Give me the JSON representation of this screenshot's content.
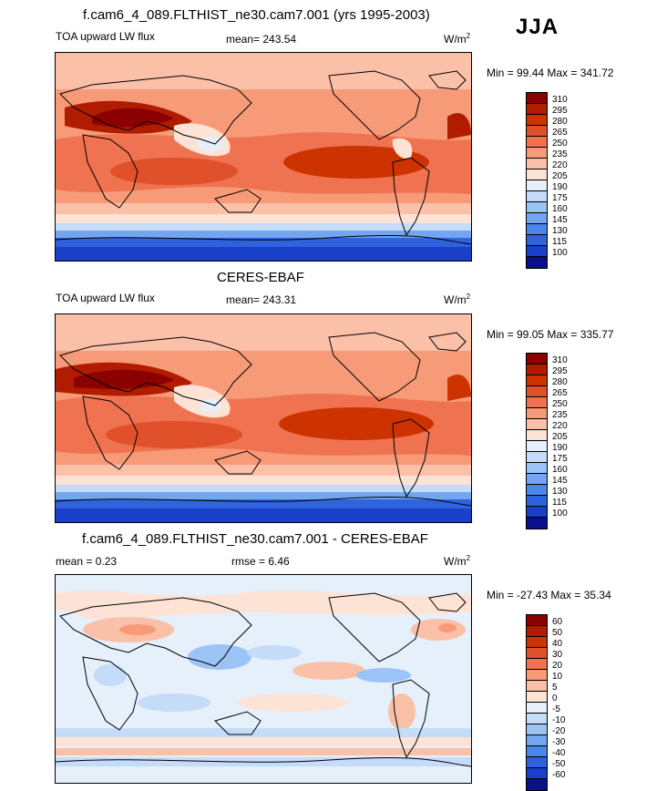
{
  "season": "JJA",
  "panels": [
    {
      "title": "f.cam6_4_089.FLTHIST_ne30.cam7.001 (yrs 1995-2003)",
      "left_label": "TOA upward LW flux",
      "center_label": "mean= 243.54",
      "units": "W/m",
      "units_sup": "2",
      "minmax": "Min =  99.44 Max = 341.72",
      "levels": [
        "310",
        "295",
        "280",
        "265",
        "250",
        "235",
        "220",
        "205",
        "190",
        "175",
        "160",
        "145",
        "130",
        "115",
        "100"
      ],
      "colors": [
        "#8b0000",
        "#b01c00",
        "#cc3300",
        "#e0502a",
        "#ef7350",
        "#f79a78",
        "#fbc0a8",
        "#fde3d6",
        "#e6f0fb",
        "#c4dcf8",
        "#9cc3f5",
        "#74a6f0",
        "#4c86ea",
        "#2f62dd",
        "#1a3fc8",
        "#08108a"
      ]
    },
    {
      "title": "CERES-EBAF",
      "left_label": "TOA upward LW flux",
      "center_label": "mean= 243.31",
      "units": "W/m",
      "units_sup": "2",
      "minmax": "Min =  99.05 Max = 335.77",
      "levels": [
        "310",
        "295",
        "280",
        "265",
        "250",
        "235",
        "220",
        "205",
        "190",
        "175",
        "160",
        "145",
        "130",
        "115",
        "100"
      ],
      "colors": [
        "#8b0000",
        "#b01c00",
        "#cc3300",
        "#e0502a",
        "#ef7350",
        "#f79a78",
        "#fbc0a8",
        "#fde3d6",
        "#e6f0fb",
        "#c4dcf8",
        "#9cc3f5",
        "#74a6f0",
        "#4c86ea",
        "#2f62dd",
        "#1a3fc8",
        "#08108a"
      ]
    },
    {
      "title": "f.cam6_4_089.FLTHIST_ne30.cam7.001 - CERES-EBAF",
      "left_label": "mean =   0.23",
      "center_label": "rmse =   6.46",
      "units": "W/m",
      "units_sup": "2",
      "minmax": "Min = -27.43 Max =  35.34",
      "levels": [
        "60",
        "50",
        "40",
        "30",
        "20",
        "10",
        "5",
        "0",
        "-5",
        "-10",
        "-20",
        "-30",
        "-40",
        "-50",
        "-60"
      ],
      "colors": [
        "#8b0000",
        "#b01c00",
        "#cc3300",
        "#e0502a",
        "#ef7350",
        "#f79a78",
        "#fbc0a8",
        "#fde3d6",
        "#e6f0fb",
        "#c4dcf8",
        "#9cc3f5",
        "#74a6f0",
        "#4c86ea",
        "#2f62dd",
        "#1a3fc8",
        "#08108a"
      ]
    }
  ]
}
